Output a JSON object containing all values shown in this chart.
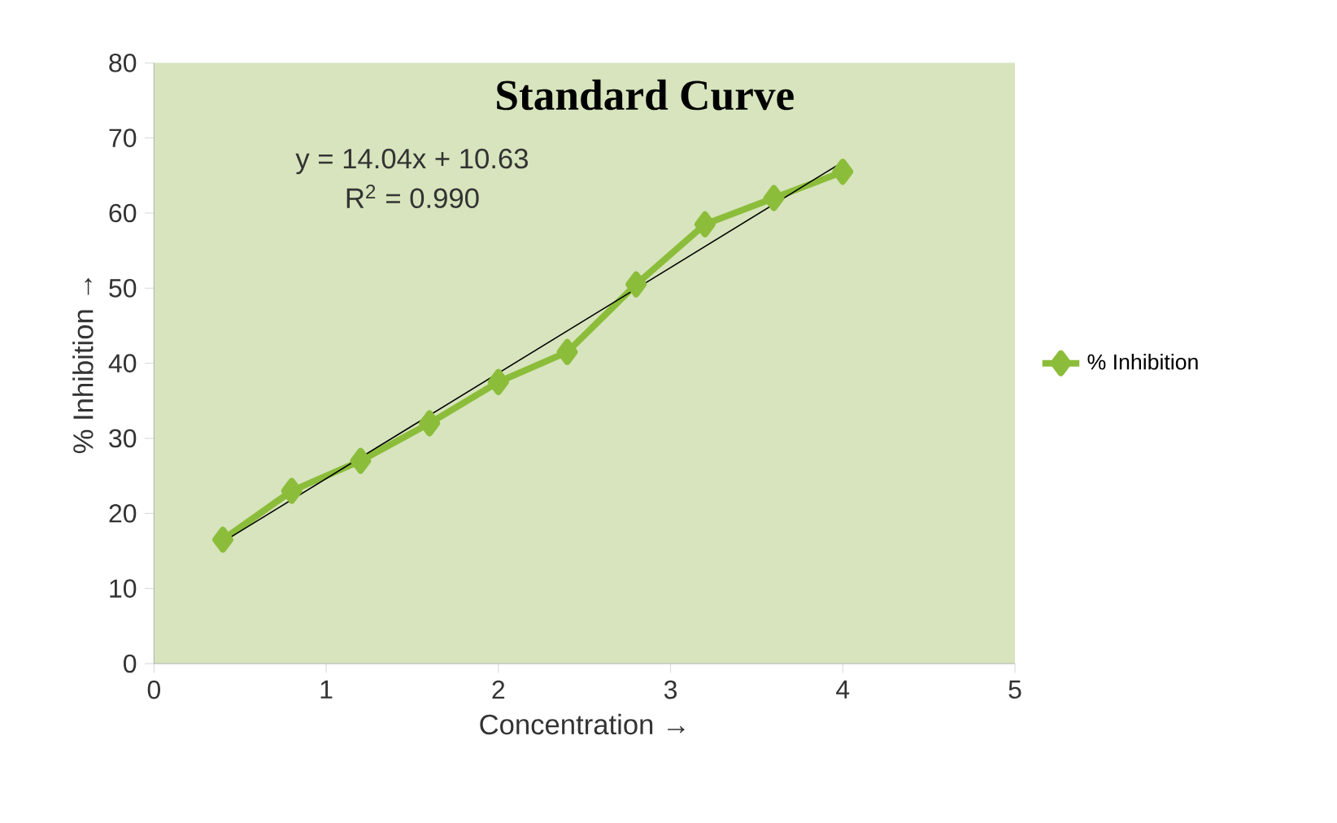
{
  "chart_data": {
    "type": "line",
    "title": "Standard Curve",
    "xlabel": "Concentration →",
    "ylabel": "% Inhibition →",
    "annotations": [
      "y = 14.04x + 10.63",
      "R$^{2}$ = 0.990"
    ],
    "x": [
      0.4,
      0.8,
      1.2,
      1.6,
      2.0,
      2.4,
      2.8,
      3.2,
      3.6,
      4.0
    ],
    "series": [
      {
        "name": "% Inhibition",
        "color": "#8cbd3a",
        "values": [
          16.5,
          23,
          27,
          32,
          37.5,
          41.5,
          50.5,
          58.5,
          62,
          65.5
        ],
        "marker": "diamond"
      },
      {
        "type": "line",
        "color": "#000000",
        "x": [
          0.4,
          4.0
        ],
        "values": [
          16.2,
          66.8
        ],
        "marker": "none"
      }
    ],
    "xlim": [
      0,
      5
    ],
    "xticks": [
      0,
      1,
      2,
      3,
      4,
      5
    ],
    "ylim": [
      0,
      80
    ],
    "yticks": [
      0,
      10,
      20,
      30,
      40,
      50,
      60,
      70,
      80
    ],
    "grid": false,
    "legend": "right"
  }
}
